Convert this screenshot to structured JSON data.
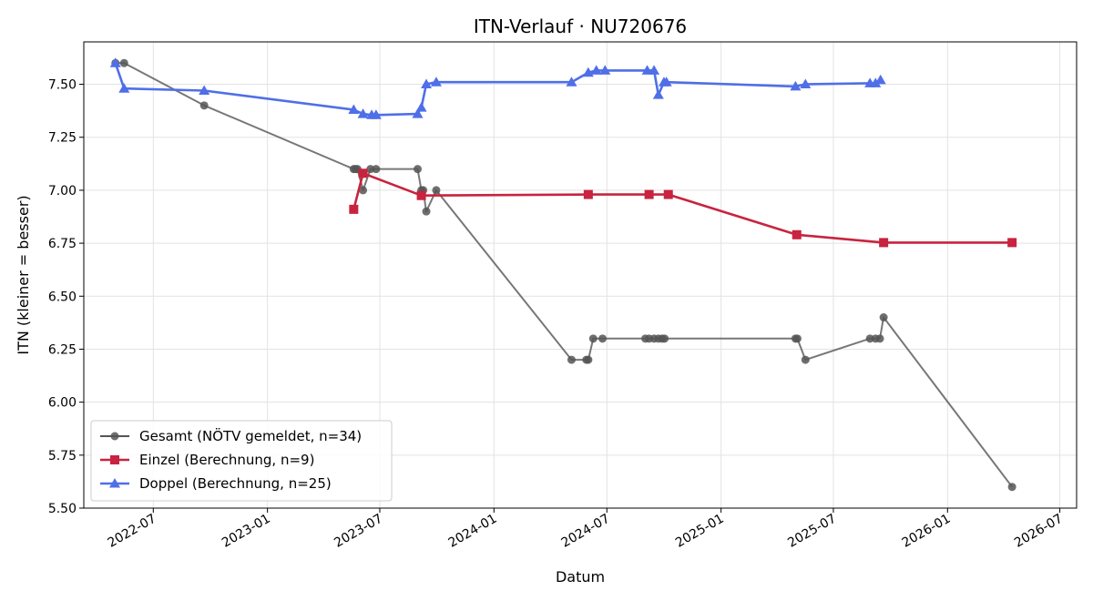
{
  "chart_data": {
    "type": "line",
    "title": "ITN-Verlauf · NU720676",
    "xlabel": "Datum",
    "ylabel": "ITN  (kleiner = besser)",
    "x_type": "date",
    "xlim": [
      "2022-03-11",
      "2026-07-28"
    ],
    "ylim": [
      5.5,
      7.7
    ],
    "x_ticks": [
      "2022-07",
      "2023-01",
      "2023-07",
      "2024-01",
      "2024-07",
      "2025-01",
      "2025-07",
      "2026-01",
      "2026-07"
    ],
    "y_ticks": [
      "5.50",
      "5.75",
      "6.00",
      "6.25",
      "6.50",
      "6.75",
      "7.00",
      "7.25",
      "7.50"
    ],
    "grid": true,
    "legend_position": "lower-left",
    "series": [
      {
        "name": "Gesamt (NÖTV gemeldet, n=34)",
        "color": "#555555",
        "marker": "circle",
        "points": [
          [
            "2022-05-01",
            7.6
          ],
          [
            "2022-05-15",
            7.6
          ],
          [
            "2022-09-21",
            7.4
          ],
          [
            "2023-05-20",
            7.1
          ],
          [
            "2023-05-23",
            7.1
          ],
          [
            "2023-05-26",
            7.1
          ],
          [
            "2023-06-04",
            7.0
          ],
          [
            "2023-06-16",
            7.1
          ],
          [
            "2023-06-25",
            7.1
          ],
          [
            "2023-08-31",
            7.1
          ],
          [
            "2023-09-06",
            7.0
          ],
          [
            "2023-09-09",
            7.0
          ],
          [
            "2023-09-14",
            6.9
          ],
          [
            "2023-09-30",
            7.0
          ],
          [
            "2024-05-05",
            6.2
          ],
          [
            "2024-05-29",
            6.2
          ],
          [
            "2024-06-01",
            6.2
          ],
          [
            "2024-06-09",
            6.3
          ],
          [
            "2024-06-24",
            6.3
          ],
          [
            "2024-09-01",
            6.3
          ],
          [
            "2024-09-07",
            6.3
          ],
          [
            "2024-09-15",
            6.3
          ],
          [
            "2024-09-22",
            6.3
          ],
          [
            "2024-09-28",
            6.3
          ],
          [
            "2024-10-02",
            6.3
          ],
          [
            "2025-05-01",
            6.3
          ],
          [
            "2025-05-04",
            6.3
          ],
          [
            "2025-05-17",
            6.2
          ],
          [
            "2025-08-29",
            6.3
          ],
          [
            "2025-09-07",
            6.3
          ],
          [
            "2025-09-14",
            6.3
          ],
          [
            "2025-09-20",
            6.4
          ],
          [
            "2026-04-15",
            5.6
          ]
        ]
      },
      {
        "name": "Einzel (Berechnung, n=9)",
        "color": "#c8233f",
        "marker": "square",
        "points": [
          [
            "2023-05-20",
            6.91
          ],
          [
            "2023-06-04",
            7.08
          ],
          [
            "2023-09-06",
            6.975
          ],
          [
            "2024-06-01",
            6.98
          ],
          [
            "2024-09-07",
            6.98
          ],
          [
            "2024-10-08",
            6.98
          ],
          [
            "2025-05-03",
            6.79
          ],
          [
            "2025-09-20",
            6.753
          ],
          [
            "2026-04-15",
            6.753
          ]
        ]
      },
      {
        "name": "Doppel (Berechnung, n=25)",
        "color": "#4f6fe8",
        "marker": "triangle",
        "points": [
          [
            "2022-05-01",
            7.6
          ],
          [
            "2022-05-15",
            7.48
          ],
          [
            "2022-09-21",
            7.47
          ],
          [
            "2023-05-20",
            7.38
          ],
          [
            "2023-06-04",
            7.36
          ],
          [
            "2023-06-18",
            7.355
          ],
          [
            "2023-06-25",
            7.355
          ],
          [
            "2023-08-31",
            7.36
          ],
          [
            "2023-09-06",
            7.39
          ],
          [
            "2023-09-14",
            7.5
          ],
          [
            "2023-09-30",
            7.51
          ],
          [
            "2024-05-05",
            7.51
          ],
          [
            "2024-06-01",
            7.555
          ],
          [
            "2024-06-14",
            7.565
          ],
          [
            "2024-06-28",
            7.565
          ],
          [
            "2024-09-04",
            7.565
          ],
          [
            "2024-09-15",
            7.565
          ],
          [
            "2024-09-22",
            7.45
          ],
          [
            "2024-10-01",
            7.51
          ],
          [
            "2024-10-05",
            7.51
          ],
          [
            "2025-05-01",
            7.49
          ],
          [
            "2025-05-17",
            7.5
          ],
          [
            "2025-08-29",
            7.505
          ],
          [
            "2025-09-07",
            7.505
          ],
          [
            "2025-09-15",
            7.52
          ]
        ]
      }
    ]
  }
}
